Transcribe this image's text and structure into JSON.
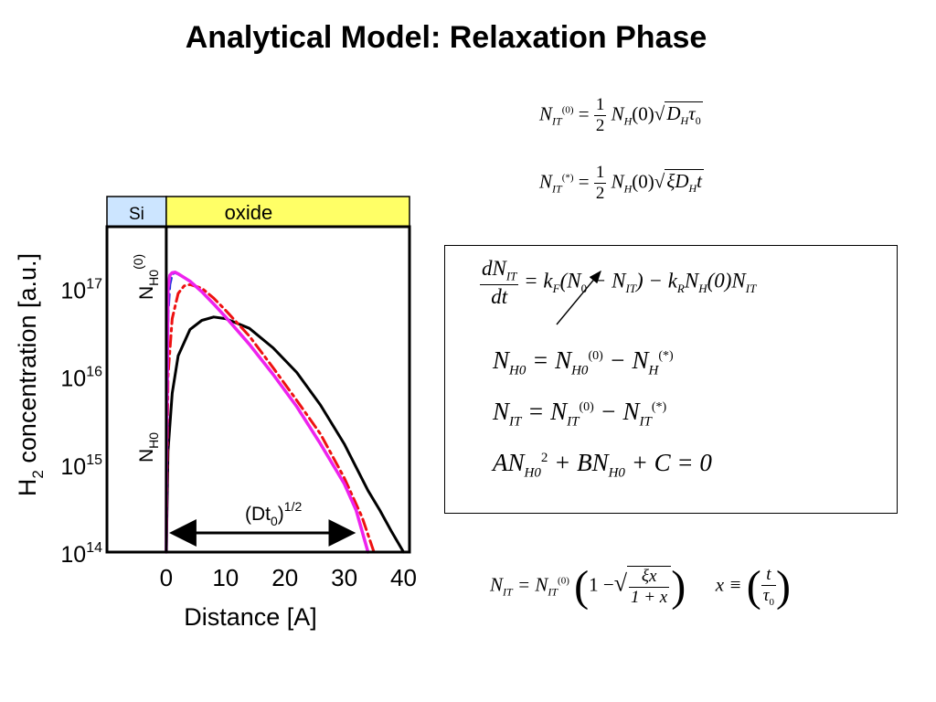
{
  "title": "Analytical Model: Relaxation Phase",
  "colors": {
    "region_si": "#cce5ff",
    "region_oxide": "#ffff66",
    "series_black": "#000000",
    "series_red": "#ee1111",
    "series_blue": "#2233dd",
    "series_magenta": "#ee22ee"
  },
  "chart_data": {
    "type": "line",
    "title": "",
    "xlabel": "Distance [A]",
    "ylabel": "H2 concentration [a.u.]",
    "ylabel_parts": {
      "pre": "H",
      "sub": "2",
      "post": " concentration [a.u.]"
    },
    "yscale": "log",
    "xlim": [
      -10,
      41
    ],
    "ylim": [
      100000000000000.0,
      5e+17
    ],
    "xticks": [
      {
        "value": 0,
        "label": "0"
      },
      {
        "value": 10,
        "label": "10"
      },
      {
        "value": 20,
        "label": "20"
      },
      {
        "value": 30,
        "label": "30"
      },
      {
        "value": 40,
        "label": "40"
      }
    ],
    "yticks": [
      {
        "value": 1e+17,
        "base": "10",
        "exp": "17"
      },
      {
        "value": 1e+16,
        "base": "10",
        "exp": "16"
      },
      {
        "value": 1000000000000000.0,
        "base": "10",
        "exp": "15"
      },
      {
        "value": 100000000000000.0,
        "base": "10",
        "exp": "14"
      }
    ],
    "regions": [
      {
        "label": "Si",
        "x": [
          -10,
          0
        ]
      },
      {
        "label": "oxide",
        "x": [
          0,
          41
        ]
      }
    ],
    "annotations": {
      "nh0_top": {
        "main": "N",
        "sub": "H0",
        "sup": "(0)"
      },
      "nh0_bottom": {
        "main": "N",
        "sub": "H0"
      },
      "diffusion_length": {
        "main": "(Dt",
        "sub": "0",
        "close": ")",
        "sup": "1/2",
        "x": [
          0,
          31.5
        ]
      }
    },
    "series": [
      {
        "color": "black",
        "style": "solid",
        "x": [
          0,
          0.05,
          0.3,
          1,
          2,
          4,
          6,
          8,
          10,
          14,
          18,
          22,
          26,
          30,
          34,
          36,
          38,
          40
        ],
        "y": [
          100000000000000.0,
          140000000000000.0,
          1400000000000000.0,
          6400000000000000.0,
          1.7e+16,
          3.4e+16,
          4.3e+16,
          4.7e+16,
          4.5e+16,
          3.5e+16,
          2.1e+16,
          1.1e+16,
          4700000000000000.0,
          1700000000000000.0,
          500000000000000.0,
          300000000000000.0,
          170000000000000.0,
          100000000000000.0
        ]
      },
      {
        "color": "red",
        "style": "dash-dot",
        "x": [
          0,
          0.05,
          0.3,
          1,
          2,
          3,
          4,
          6,
          8,
          10,
          14,
          18,
          22,
          26,
          30,
          33,
          35
        ],
        "y": [
          100000000000000.0,
          200000000000000.0,
          1e+16,
          4.5e+16,
          8.7e+16,
          1.06e+17,
          1.1e+17,
          1e+17,
          7.7e+16,
          5.6e+16,
          2.85e+16,
          1.25e+16,
          5300000000000000.0,
          2200000000000000.0,
          700000000000000.0,
          250000000000000.0,
          100000000000000.0
        ]
      },
      {
        "color": "blue",
        "style": "dashed",
        "x": [
          0,
          0.05,
          0.3,
          0.6,
          1,
          1.5,
          2,
          4,
          6,
          8,
          10,
          14,
          18,
          22,
          26,
          30,
          32,
          34
        ],
        "y": [
          100000000000000.0,
          800000000000000.0,
          5e+16,
          1.1e+17,
          1.45e+17,
          1.5e+17,
          1.45e+17,
          1.2e+17,
          9.1e+16,
          6.6e+16,
          4.7e+16,
          2.3e+16,
          1.05e+16,
          4500000000000000.0,
          1700000000000000.0,
          600000000000000.0,
          300000000000000.0,
          100000000000000.0
        ]
      },
      {
        "color": "magenta",
        "style": "solid",
        "x": [
          0,
          0.05,
          0.3,
          0.6,
          1,
          1.5,
          2,
          4,
          6,
          8,
          10,
          14,
          18,
          22,
          26,
          30,
          32,
          34
        ],
        "y": [
          100000000000000.0,
          1000000000000000.0,
          1e+17,
          1.4e+17,
          1.5e+17,
          1.52e+17,
          1.46e+17,
          1.2e+17,
          9.1e+16,
          6.6e+16,
          4.7e+16,
          2.3e+16,
          1.05e+16,
          4500000000000000.0,
          1700000000000000.0,
          600000000000000.0,
          300000000000000.0,
          100000000000000.0
        ]
      }
    ]
  },
  "equations": {
    "eq_nit0": {
      "lhs_main": "N",
      "lhs_sub": "IT",
      "lhs_sup": "(0)",
      "eq": "=",
      "frac_num": "1",
      "frac_den": "2",
      "nh": "N",
      "nh_sub": "H",
      "arg": "(0)",
      "sqrt_a": "D",
      "sqrt_a_sub": "H",
      "sqrt_b": "τ",
      "sqrt_b_sub": "0"
    },
    "eq_nitstar": {
      "lhs_main": "N",
      "lhs_sub": "IT",
      "lhs_sup": "(*)",
      "eq": "=",
      "frac_num": "1",
      "frac_den": "2",
      "nh": "N",
      "nh_sub": "H",
      "arg": "(0)",
      "sqrt_a": "ξD",
      "sqrt_a_sub": "H",
      "sqrt_b": "t"
    },
    "box": {
      "rate": {
        "num": "dN",
        "num_sub": "IT",
        "den": "dt",
        "rhs": "= k",
        "kf_sub": "F",
        "part2": "(N",
        "n0_sub": "0",
        "part3": " − N",
        "nit_sub": "IT",
        "part4": ") − k",
        "kr_sub": "R",
        "part5": "N",
        "nh_sub": "H",
        "part6": "(0)N",
        "nit2_sub": "IT"
      },
      "nh0": {
        "a": "N",
        "a_sub": "H0",
        "eq": " = N",
        "b_sub": "H0",
        "b_sup": "(0)",
        "minus": " − N",
        "c_sub": "H",
        "c_sup": "(*)"
      },
      "nit": {
        "a": "N",
        "a_sub": "IT",
        "eq": " = N",
        "b_sub": "IT",
        "b_sup": "(0)",
        "minus": " − N",
        "c_sub": "IT",
        "c_sup": "(*)"
      },
      "quad": {
        "a": "AN",
        "a_sub": "H0",
        "a_sup": "2",
        "b": " + BN",
        "b_sub": "H0",
        "c": " + C = 0"
      }
    },
    "eq_final": {
      "lhs": "N",
      "lhs_sub": "IT",
      "eq": " = N",
      "rhs_sub": "IT",
      "rhs_sup": "(0)",
      "one": "1 −",
      "sqrt_num": "ξx",
      "sqrt_den": "1 + x",
      "x": "x ≡",
      "t": "t",
      "tau": "τ",
      "tau_sub": "0"
    }
  }
}
